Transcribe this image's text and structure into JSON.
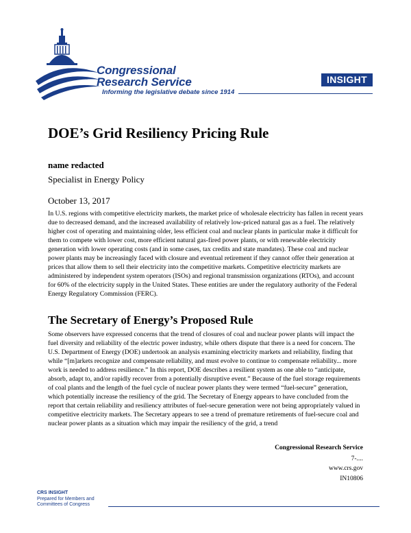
{
  "header": {
    "org_line1": "Congressional",
    "org_line2": "Research Service",
    "tagline": "Informing the legislative debate since 1914",
    "badge": "INSIGHT",
    "logo_icon": "capitol-dome-icon",
    "brand_color": "#1a3d8a"
  },
  "document": {
    "title": "DOE’s Grid Resiliency Pricing Rule",
    "author_name": "name redacted",
    "author_role": "Specialist in Energy Policy",
    "date": "October 13, 2017",
    "paragraph1": "In U.S. regions with competitive electricity markets, the market price of wholesale electricity has fallen in recent years due to decreased demand, and the increased availability of relatively low-priced natural gas as a fuel. The relatively higher cost of operating and maintaining older, less efficient coal and nuclear plants in particular make it difficult for them to compete with lower cost, more efficient natural gas-fired power plants, or with renewable electricity generation with lower operating costs (and in some cases, tax credits and state mandates). These coal and nuclear power plants may be increasingly faced with closure and eventual retirement if they cannot offer their generation at prices that allow them to sell their electricity into the competitive markets. Competitive electricity markets are administered by independent system operators (ISOs) and regional transmission organizations (RTOs), and account for 60% of the electricity supply in the United States. These entities are under the regulatory authority of the Federal Energy Regulatory Commission (FERC).",
    "section_heading": "The Secretary of Energy’s Proposed Rule",
    "paragraph2": "Some observers have expressed concerns that the trend of closures of coal and nuclear power plants will impact the fuel diversity and reliability of the electric power industry, while others dispute that there is a need for concern. The U.S. Department of Energy (DOE) undertook an analysis examining electricity markets and reliability, finding that while “[m]arkets recognize and compensate reliability, and must evolve to continue to compensate reliability... more work is needed to address resilience.” In this report, DOE describes a resilient system as one able to “anticipate, absorb, adapt to, and/or rapidly recover from a potentially disruptive event.” Because of the fuel storage requirements of coal plants and the length of the fuel cycle of nuclear power plants they were termed “fuel-secure” generation, which potentially increase the resiliency of the grid. The Secretary of Energy appears to have concluded from the report that certain reliability and resiliency attributes of fuel-secure generation were not being appropriately valued in competitive electricity markets. The Secretary appears to see a trend of premature retirements of fuel-secure coal and nuclear power plants as a situation which may impair the resiliency of the grid, a trend"
  },
  "footer": {
    "org": "Congressional Research Service",
    "number": "7-....",
    "website": "www.crs.gov",
    "id": "IN10806",
    "insight_label": "CRS INSIGHT",
    "prepared_line1": "Prepared for Members and",
    "prepared_line2": "Committees of Congress"
  }
}
